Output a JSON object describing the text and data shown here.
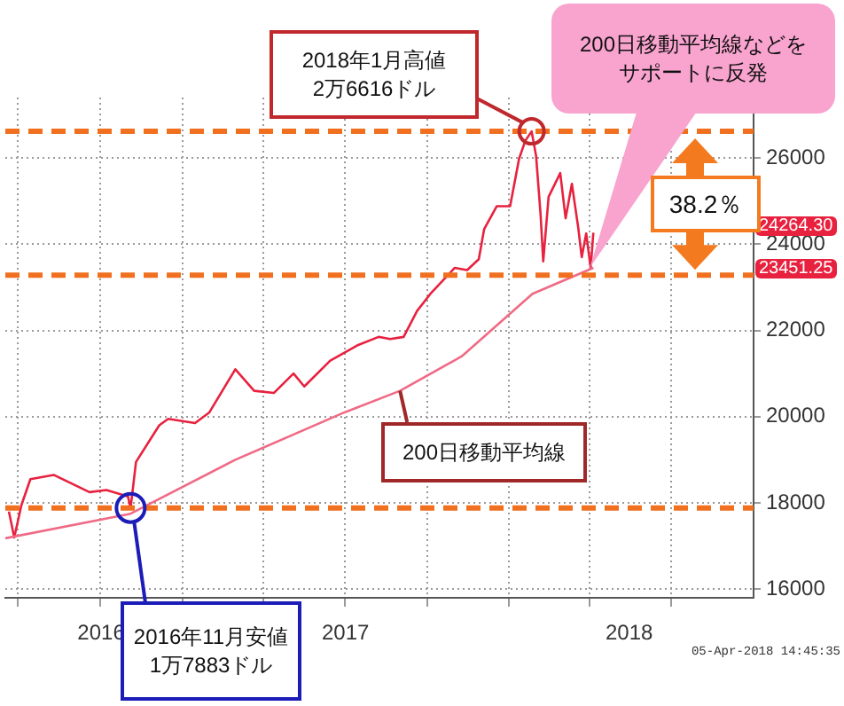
{
  "chart_data": {
    "type": "line",
    "xlim": [
      "2016-06-17",
      "2018-10-01"
    ],
    "xticks": [
      {
        "value": "2016-07-01",
        "label": null
      },
      {
        "value": "2016-10-01",
        "label": null
      },
      {
        "value": "2017-01-01",
        "label": null
      },
      {
        "value": "2017-04-01",
        "label": null
      },
      {
        "value": "2017-07-01",
        "label": null
      },
      {
        "value": "2017-10-01",
        "label": null
      },
      {
        "value": "2018-01-01",
        "label": null
      },
      {
        "value": "2018-04-01",
        "label": null
      },
      {
        "value": "2018-07-01",
        "label": null
      },
      {
        "value": "2016-10-02",
        "label": "2016"
      },
      {
        "value": "2017-07-02",
        "label": "2017"
      },
      {
        "value": "2018-05-15",
        "label": "2018"
      }
    ],
    "ylim": [
      15800,
      27400
    ],
    "yticks": [
      16000,
      18000,
      20000,
      22000,
      24000,
      26000
    ],
    "grid": true,
    "legend": false,
    "marker": "none",
    "line_style": "solid",
    "series": [
      {
        "name": "200日移動平均線",
        "color": "#f06a85",
        "x": [
          "2016-06-17",
          "2016-11-04",
          "2017-03-01",
          "2017-07-01",
          "2017-09-01",
          "2017-11-09",
          "2018-01-27",
          "2018-04-05"
        ],
        "values": [
          17180,
          17750,
          19000,
          20100,
          20600,
          21400,
          22850,
          23451.25
        ]
      },
      {
        "color": "#e8213f",
        "x": [
          "2016-06-21",
          "2016-06-27",
          "2016-07-05",
          "2016-07-15",
          "2016-08-10",
          "2016-08-30",
          "2016-09-19",
          "2016-10-08",
          "2016-11-01",
          "2016-11-04",
          "2016-11-10",
          "2016-12-06",
          "2016-12-16",
          "2017-01-15",
          "2017-01-31",
          "2017-03-01",
          "2017-03-22",
          "2017-04-13",
          "2017-05-05",
          "2017-05-17",
          "2017-06-15",
          "2017-07-15",
          "2017-08-08",
          "2017-08-21",
          "2017-09-05",
          "2017-09-20",
          "2017-10-05",
          "2017-11-01",
          "2017-11-15",
          "2017-11-28",
          "2017-12-04",
          "2017-12-18",
          "2018-01-02",
          "2018-01-12",
          "2018-01-19",
          "2018-01-26",
          "2018-01-31",
          "2018-02-05",
          "2018-02-08",
          "2018-02-14",
          "2018-02-27",
          "2018-03-05",
          "2018-03-12",
          "2018-03-19",
          "2018-03-23",
          "2018-03-28",
          "2018-04-02",
          "2018-04-05"
        ],
        "values": [
          17800,
          17200,
          17950,
          18550,
          18650,
          18450,
          18250,
          18300,
          18150,
          17883,
          18950,
          19800,
          19950,
          19850,
          20100,
          21100,
          20600,
          20550,
          21000,
          20700,
          21300,
          21650,
          21850,
          21800,
          21850,
          22450,
          22850,
          23450,
          23400,
          23650,
          24350,
          24880,
          24880,
          25980,
          26400,
          26616,
          26050,
          24700,
          23600,
          25100,
          25650,
          24600,
          25400,
          24400,
          23700,
          24250,
          23450,
          24264.3
        ]
      }
    ],
    "ref_lines": [
      {
        "axis": "y",
        "value": 26616,
        "label": null,
        "color": "#f07020",
        "line_style": "dashed"
      },
      {
        "axis": "y",
        "value": 23280,
        "label": null,
        "color": "#f07020",
        "line_style": "dashed"
      },
      {
        "axis": "y",
        "value": 17883,
        "label": null,
        "color": "#f07020",
        "line_style": "dashed"
      }
    ],
    "annotations": [
      "2018年1月高値2万6616ドル",
      {
        "text": "2016年11月安値1万7883ドル",
        "x": "2016-11-04",
        "y": 17883
      },
      "200日移動平均線などをサポートに反発",
      "24264.30",
      "23451.25",
      "38.2％",
      "05-Apr-2018 14:45:35"
    ]
  }
}
